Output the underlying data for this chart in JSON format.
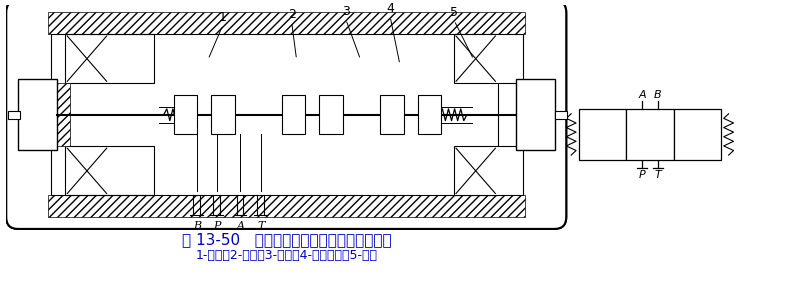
{
  "title": "图 13-50   三位四通电磁换向阀的结构原理图",
  "subtitle": "1-阀体；2-阀芯；3-弹簧；4-电磁线圈；5-衔铁",
  "title_color": "#0000bb",
  "subtitle_color": "#0000bb",
  "bg_color": "#ffffff",
  "line_color": "#000000",
  "labels_bottom": [
    "B",
    "P",
    "A",
    "T"
  ],
  "labels_top": [
    "1",
    "2",
    "3",
    "4",
    "5"
  ],
  "title_fontsize": 11,
  "subtitle_fontsize": 9
}
